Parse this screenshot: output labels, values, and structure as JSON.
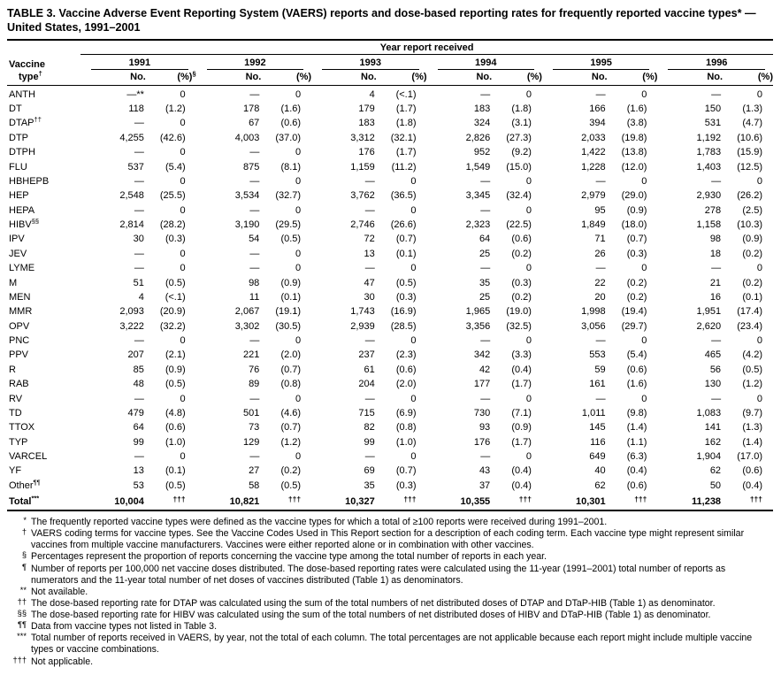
{
  "title": "TABLE 3. Vaccine Adverse Event Reporting System (VAERS) reports and dose-based reporting rates for frequently reported vaccine types* — United States, 1991–2001",
  "header": {
    "group": "Year report received",
    "col1_line1": "Vaccine",
    "col1_line2": "type",
    "col1_sup": "†",
    "years": [
      {
        "label": "1991",
        "no": "No.",
        "pct": "(%)",
        "pct_sup": "§"
      },
      {
        "label": "1992",
        "no": "No.",
        "pct": "(%)",
        "pct_sup": ""
      },
      {
        "label": "1993",
        "no": "No.",
        "pct": "(%)",
        "pct_sup": ""
      },
      {
        "label": "1994",
        "no": "No.",
        "pct": "(%)",
        "pct_sup": ""
      },
      {
        "label": "1995",
        "no": "No.",
        "pct": "(%)",
        "pct_sup": ""
      },
      {
        "label": "1996",
        "no": "No.",
        "pct": "(%)",
        "pct_sup": ""
      }
    ]
  },
  "rows": [
    {
      "label": "ANTH",
      "sup": "",
      "bold": false,
      "cells": [
        "—**",
        "0",
        "—",
        "0",
        "4",
        "(<.1)",
        "—",
        "0",
        "—",
        "0",
        "—",
        "0"
      ]
    },
    {
      "label": "DT",
      "sup": "",
      "bold": false,
      "cells": [
        "118",
        "(1.2)",
        "178",
        "(1.6)",
        "179",
        "(1.7)",
        "183",
        "(1.8)",
        "166",
        "(1.6)",
        "150",
        "(1.3)"
      ]
    },
    {
      "label": "DTAP",
      "sup": "††",
      "bold": false,
      "cells": [
        "—",
        "0",
        "67",
        "(0.6)",
        "183",
        "(1.8)",
        "324",
        "(3.1)",
        "394",
        "(3.8)",
        "531",
        "(4.7)"
      ]
    },
    {
      "label": "DTP",
      "sup": "",
      "bold": false,
      "cells": [
        "4,255",
        "(42.6)",
        "4,003",
        "(37.0)",
        "3,312",
        "(32.1)",
        "2,826",
        "(27.3)",
        "2,033",
        "(19.8)",
        "1,192",
        "(10.6)"
      ]
    },
    {
      "label": "DTPH",
      "sup": "",
      "bold": false,
      "cells": [
        "—",
        "0",
        "—",
        "0",
        "176",
        "(1.7)",
        "952",
        "(9.2)",
        "1,422",
        "(13.8)",
        "1,783",
        "(15.9)"
      ]
    },
    {
      "label": "FLU",
      "sup": "",
      "bold": false,
      "cells": [
        "537",
        "(5.4)",
        "875",
        "(8.1)",
        "1,159",
        "(11.2)",
        "1,549",
        "(15.0)",
        "1,228",
        "(12.0)",
        "1,403",
        "(12.5)"
      ]
    },
    {
      "label": "HBHEPB",
      "sup": "",
      "bold": false,
      "cells": [
        "—",
        "0",
        "—",
        "0",
        "—",
        "0",
        "—",
        "0",
        "—",
        "0",
        "—",
        "0"
      ]
    },
    {
      "label": "HEP",
      "sup": "",
      "bold": false,
      "cells": [
        "2,548",
        "(25.5)",
        "3,534",
        "(32.7)",
        "3,762",
        "(36.5)",
        "3,345",
        "(32.4)",
        "2,979",
        "(29.0)",
        "2,930",
        "(26.2)"
      ]
    },
    {
      "label": "HEPA",
      "sup": "",
      "bold": false,
      "cells": [
        "—",
        "0",
        "—",
        "0",
        "—",
        "0",
        "—",
        "0",
        "95",
        "(0.9)",
        "278",
        "(2.5)"
      ]
    },
    {
      "label": "HIBV",
      "sup": "§§",
      "bold": false,
      "cells": [
        "2,814",
        "(28.2)",
        "3,190",
        "(29.5)",
        "2,746",
        "(26.6)",
        "2,323",
        "(22.5)",
        "1,849",
        "(18.0)",
        "1,158",
        "(10.3)"
      ]
    },
    {
      "label": "IPV",
      "sup": "",
      "bold": false,
      "cells": [
        "30",
        "(0.3)",
        "54",
        "(0.5)",
        "72",
        "(0.7)",
        "64",
        "(0.6)",
        "71",
        "(0.7)",
        "98",
        "(0.9)"
      ]
    },
    {
      "label": "JEV",
      "sup": "",
      "bold": false,
      "cells": [
        "—",
        "0",
        "—",
        "0",
        "13",
        "(0.1)",
        "25",
        "(0.2)",
        "26",
        "(0.3)",
        "18",
        "(0.2)"
      ]
    },
    {
      "label": "LYME",
      "sup": "",
      "bold": false,
      "cells": [
        "—",
        "0",
        "—",
        "0",
        "—",
        "0",
        "—",
        "0",
        "—",
        "0",
        "—",
        "0"
      ]
    },
    {
      "label": "M",
      "sup": "",
      "bold": false,
      "cells": [
        "51",
        "(0.5)",
        "98",
        "(0.9)",
        "47",
        "(0.5)",
        "35",
        "(0.3)",
        "22",
        "(0.2)",
        "21",
        "(0.2)"
      ]
    },
    {
      "label": "MEN",
      "sup": "",
      "bold": false,
      "cells": [
        "4",
        "(<.1)",
        "11",
        "(0.1)",
        "30",
        "(0.3)",
        "25",
        "(0.2)",
        "20",
        "(0.2)",
        "16",
        "(0.1)"
      ]
    },
    {
      "label": "MMR",
      "sup": "",
      "bold": false,
      "cells": [
        "2,093",
        "(20.9)",
        "2,067",
        "(19.1)",
        "1,743",
        "(16.9)",
        "1,965",
        "(19.0)",
        "1,998",
        "(19.4)",
        "1,951",
        "(17.4)"
      ]
    },
    {
      "label": "OPV",
      "sup": "",
      "bold": false,
      "cells": [
        "3,222",
        "(32.2)",
        "3,302",
        "(30.5)",
        "2,939",
        "(28.5)",
        "3,356",
        "(32.5)",
        "3,056",
        "(29.7)",
        "2,620",
        "(23.4)"
      ]
    },
    {
      "label": "PNC",
      "sup": "",
      "bold": false,
      "cells": [
        "—",
        "0",
        "—",
        "0",
        "—",
        "0",
        "—",
        "0",
        "—",
        "0",
        "—",
        "0"
      ]
    },
    {
      "label": "PPV",
      "sup": "",
      "bold": false,
      "cells": [
        "207",
        "(2.1)",
        "221",
        "(2.0)",
        "237",
        "(2.3)",
        "342",
        "(3.3)",
        "553",
        "(5.4)",
        "465",
        "(4.2)"
      ]
    },
    {
      "label": "R",
      "sup": "",
      "bold": false,
      "cells": [
        "85",
        "(0.9)",
        "76",
        "(0.7)",
        "61",
        "(0.6)",
        "42",
        "(0.4)",
        "59",
        "(0.6)",
        "56",
        "(0.5)"
      ]
    },
    {
      "label": "RAB",
      "sup": "",
      "bold": false,
      "cells": [
        "48",
        "(0.5)",
        "89",
        "(0.8)",
        "204",
        "(2.0)",
        "177",
        "(1.7)",
        "161",
        "(1.6)",
        "130",
        "(1.2)"
      ]
    },
    {
      "label": "RV",
      "sup": "",
      "bold": false,
      "cells": [
        "—",
        "0",
        "—",
        "0",
        "—",
        "0",
        "—",
        "0",
        "—",
        "0",
        "—",
        "0"
      ]
    },
    {
      "label": "TD",
      "sup": "",
      "bold": false,
      "cells": [
        "479",
        "(4.8)",
        "501",
        "(4.6)",
        "715",
        "(6.9)",
        "730",
        "(7.1)",
        "1,011",
        "(9.8)",
        "1,083",
        "(9.7)"
      ]
    },
    {
      "label": "TTOX",
      "sup": "",
      "bold": false,
      "cells": [
        "64",
        "(0.6)",
        "73",
        "(0.7)",
        "82",
        "(0.8)",
        "93",
        "(0.9)",
        "145",
        "(1.4)",
        "141",
        "(1.3)"
      ]
    },
    {
      "label": "TYP",
      "sup": "",
      "bold": false,
      "cells": [
        "99",
        "(1.0)",
        "129",
        "(1.2)",
        "99",
        "(1.0)",
        "176",
        "(1.7)",
        "116",
        "(1.1)",
        "162",
        "(1.4)"
      ]
    },
    {
      "label": "VARCEL",
      "sup": "",
      "bold": false,
      "cells": [
        "—",
        "0",
        "—",
        "0",
        "—",
        "0",
        "—",
        "0",
        "649",
        "(6.3)",
        "1,904",
        "(17.0)"
      ]
    },
    {
      "label": "YF",
      "sup": "",
      "bold": false,
      "cells": [
        "13",
        "(0.1)",
        "27",
        "(0.2)",
        "69",
        "(0.7)",
        "43",
        "(0.4)",
        "40",
        "(0.4)",
        "62",
        "(0.6)"
      ]
    },
    {
      "label": "Other",
      "sup": "¶¶",
      "bold": false,
      "cells": [
        "53",
        "(0.5)",
        "58",
        "(0.5)",
        "35",
        "(0.3)",
        "37",
        "(0.4)",
        "62",
        "(0.6)",
        "50",
        "(0.4)"
      ]
    },
    {
      "label": "Total",
      "sup": "***",
      "bold": true,
      "cells": [
        "10,004",
        "†††",
        "10,821",
        "†††",
        "10,327",
        "†††",
        "10,355",
        "†††",
        "10,301",
        "†††",
        "11,238",
        "†††"
      ]
    }
  ],
  "footnotes": [
    {
      "marker": "*",
      "text": "The frequently reported vaccine types were defined as the vaccine types for which a total of ≥100 reports were received during 1991–2001."
    },
    {
      "marker": "†",
      "text": "VAERS coding terms for vaccine types. See the Vaccine Codes Used in This Report section for a description of each coding term. Each vaccine type might represent similar vaccines from multiple vaccine manufacturers. Vaccines were either reported alone or in combination with other vaccines."
    },
    {
      "marker": "§",
      "text": "Percentages represent the proportion of reports concerning the vaccine type among the total number of reports in each year."
    },
    {
      "marker": "¶",
      "text": "Number of reports per 100,000 net vaccine doses distributed. The dose-based reporting rates were calculated using the 11-year (1991–2001) total number of reports as numerators and the 11-year total number of net doses of vaccines distributed (Table 1) as denominators."
    },
    {
      "marker": "**",
      "text": "Not available."
    },
    {
      "marker": "††",
      "text": "The dose-based reporting rate for DTAP was calculated using the sum of the total numbers of net distributed doses of DTAP and DTaP-HIB (Table 1) as denominator."
    },
    {
      "marker": "§§",
      "text": "The dose-based reporting rate for HIBV was calculated using the sum of the total numbers of net distributed doses of HIBV and DTaP-HIB (Table 1) as denominator."
    },
    {
      "marker": "¶¶",
      "text": "Data from vaccine types not listed in Table 3."
    },
    {
      "marker": "***",
      "text": "Total number of reports received in VAERS, by year, not the total of each column. The total percentages are not applicable because each report might include multiple vaccine types or vaccine combinations."
    },
    {
      "marker": "†††",
      "text": "Not applicable."
    }
  ]
}
